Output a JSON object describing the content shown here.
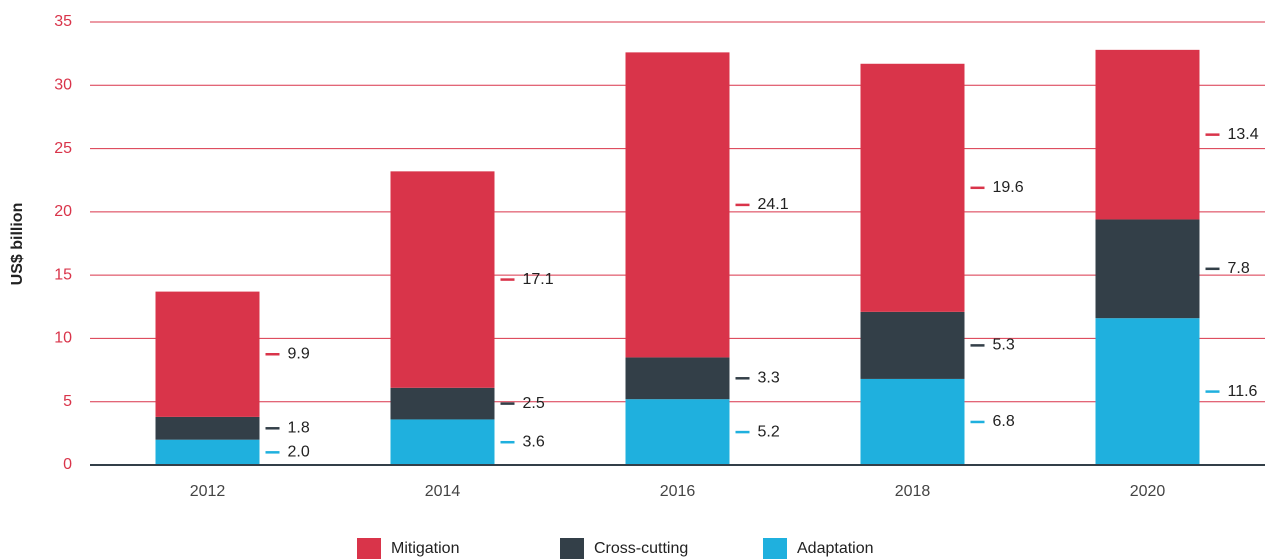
{
  "chart_data": {
    "type": "bar",
    "stacked": true,
    "y_label": "US$ billion",
    "categories": [
      "2012",
      "2014",
      "2016",
      "2018",
      "2020"
    ],
    "series": [
      {
        "name": "Mitigation",
        "color": "#d9344a",
        "values": [
          9.9,
          17.1,
          24.1,
          19.6,
          13.4
        ],
        "value_labels": [
          "9.9",
          "17.1",
          "24.1",
          "19.6",
          "13.4"
        ]
      },
      {
        "name": "Cross-cutting",
        "color": "#333f48",
        "values": [
          1.8,
          2.5,
          3.3,
          5.3,
          7.8
        ],
        "value_labels": [
          "1.8",
          "2.5",
          "3.3",
          "5.3",
          "7.8"
        ]
      },
      {
        "name": "Adaptation",
        "color": "#1fb0de",
        "values": [
          2.0,
          3.6,
          5.2,
          6.8,
          11.6
        ],
        "value_labels": [
          "2.0",
          "3.6",
          "5.2",
          "6.8",
          "11.6"
        ]
      }
    ],
    "ylim": [
      0,
      35
    ],
    "yticks": [
      0,
      5,
      10,
      15,
      20,
      25,
      30,
      35
    ],
    "grid": true,
    "legend": "bottom"
  }
}
